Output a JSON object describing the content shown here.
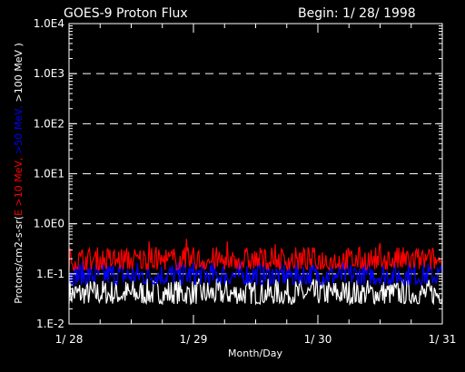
{
  "chart_data": {
    "type": "line",
    "title": "GOES-9 Proton Flux",
    "begin_label": "Begin: 1/ 28/ 1998",
    "xlabel": "Month/Day",
    "ylabel_parts": [
      {
        "text": "Protons/cm2-s-sr(",
        "color": "#ffffff"
      },
      {
        "text": "E >10 MeV, ",
        "color": "#ff0000"
      },
      {
        "text": ">50 MeV, ",
        "color": "#0000ff"
      },
      {
        "text": ">100 MeV )",
        "color": "#ffffff"
      }
    ],
    "yscale": "log",
    "ylim": [
      0.01,
      10000
    ],
    "ytick_values": [
      0.01,
      0.1,
      1,
      10,
      100,
      1000,
      10000
    ],
    "ytick_labels": [
      "1.E-2",
      "1.E-1",
      "1.0E0",
      "1.0E1",
      "1.0E2",
      "1.0E3",
      "1.0E4"
    ],
    "gridlines_at": [
      0.1,
      1,
      10,
      100,
      1000
    ],
    "grid_style": "dashed",
    "xlim_days": [
      0,
      3
    ],
    "x_tick_labels": [
      "1/ 28",
      "1/ 29",
      "1/ 30",
      "1/ 31"
    ],
    "series": [
      {
        "color": "#ff0000",
        "typical_range": [
          0.12,
          0.35
        ],
        "peak": 0.55
      },
      {
        "color": "#0000ff",
        "typical_range": [
          0.06,
          0.18
        ]
      },
      {
        "color": "#ffffff",
        "typical_range": [
          0.025,
          0.08
        ]
      }
    ]
  }
}
